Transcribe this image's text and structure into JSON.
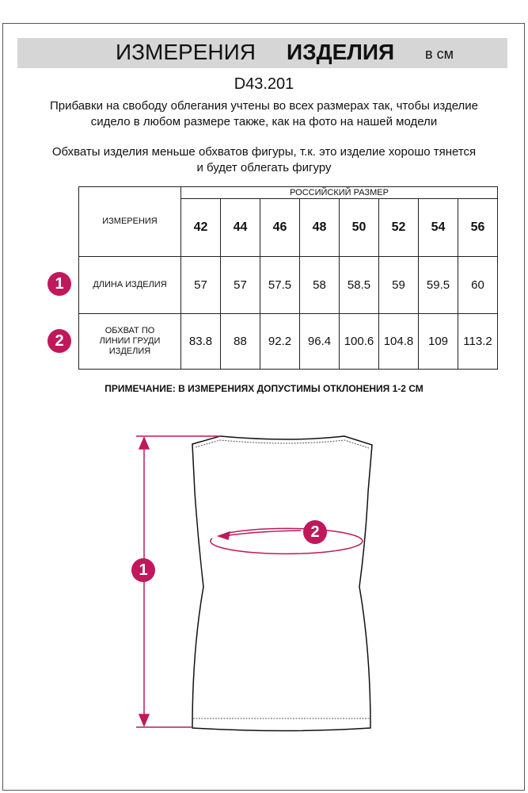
{
  "header": {
    "title_regular": "ИЗМЕРЕНИЯ",
    "title_bold": "ИЗДЕЛИЯ",
    "unit": "в см"
  },
  "article": "D43.201",
  "paragraphs": [
    "Прибавки на свободу облегания учтены во всех размерах так, чтобы изделие сидело в любом размере также, как на фото на нашей модели",
    "Обхваты изделия меньше обхватов фигуры, т.к. это изделие хорошо тянется и будет облегать фигуру"
  ],
  "table": {
    "corner_label": "ИЗМЕРЕНИЯ",
    "group_header": "РОССИЙСКИЙ РАЗМЕР",
    "sizes": [
      "42",
      "44",
      "46",
      "48",
      "50",
      "52",
      "54",
      "56"
    ],
    "rows": [
      {
        "marker": "1",
        "label": "ДЛИНА ИЗДЕЛИЯ",
        "values": [
          "57",
          "57",
          "57.5",
          "58",
          "58.5",
          "59",
          "59.5",
          "60"
        ]
      },
      {
        "marker": "2",
        "label": "ОБХВАТ ПО ЛИНИИ ГРУДИ ИЗДЕЛИЯ",
        "values": [
          "83.8",
          "88",
          "92.2",
          "96.4",
          "100.6",
          "104.8",
          "109",
          "113.2"
        ]
      }
    ]
  },
  "note": "ПРИМЕЧАНИЕ: В ИЗМЕРЕНИЯХ ДОПУСТИМЫ ОТКЛОНЕНИЯ 1-2 СМ",
  "diagram": {
    "markers": [
      "1",
      "2"
    ]
  },
  "colors": {
    "accent": "#c0185b",
    "title_bar": "#d6d6d6"
  }
}
